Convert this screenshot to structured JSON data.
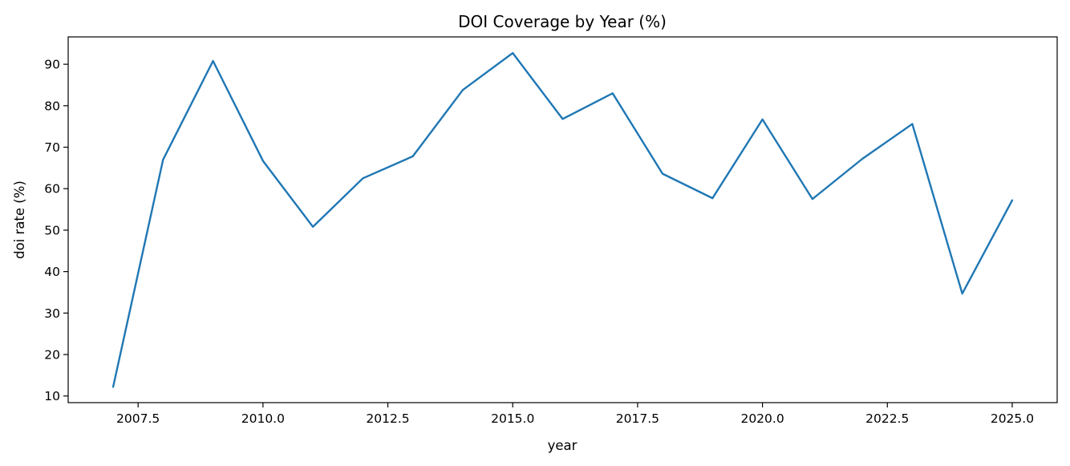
{
  "chart_data": {
    "type": "line",
    "title": "DOI Coverage by Year (%)",
    "xlabel": "year",
    "ylabel": "doi rate (%)",
    "xlim": [
      2006.1,
      2025.9
    ],
    "ylim": [
      8.4,
      96.6
    ],
    "x_ticks": [
      2007.5,
      2010.0,
      2012.5,
      2015.0,
      2017.5,
      2020.0,
      2022.5,
      2025.0
    ],
    "x_tick_labels": [
      "2007.5",
      "2010.0",
      "2012.5",
      "2015.0",
      "2017.5",
      "2020.0",
      "2022.5",
      "2025.0"
    ],
    "y_ticks": [
      10,
      20,
      30,
      40,
      50,
      60,
      70,
      80,
      90
    ],
    "y_tick_labels": [
      "10",
      "20",
      "30",
      "40",
      "50",
      "60",
      "70",
      "80",
      "90"
    ],
    "grid": false,
    "colors": {
      "line": "#1f77b4"
    },
    "series": [
      {
        "x": [
          2007,
          2008,
          2009,
          2010,
          2011,
          2012,
          2013,
          2014,
          2015,
          2016,
          2017,
          2018,
          2019,
          2020,
          2021,
          2022,
          2023,
          2024,
          2025
        ],
        "values": [
          12.2,
          67.0,
          90.8,
          66.7,
          50.8,
          62.5,
          67.8,
          83.8,
          92.7,
          76.8,
          83.0,
          63.6,
          57.7,
          76.7,
          57.5,
          67.2,
          75.6,
          34.7,
          57.2
        ]
      }
    ]
  }
}
